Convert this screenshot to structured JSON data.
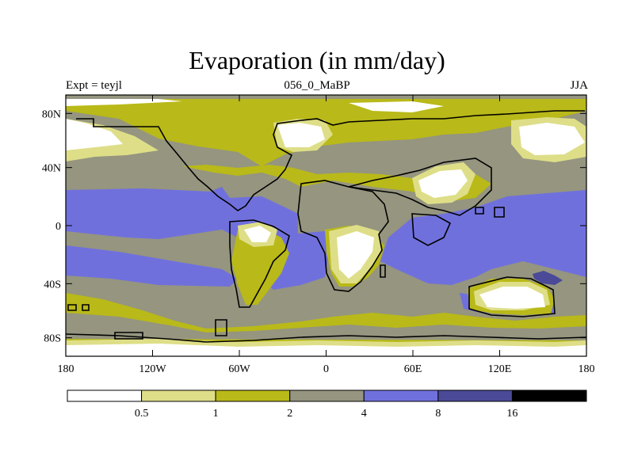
{
  "title": "Evaporation (in mm/day)",
  "subtitle_left": "Expt = teyjl",
  "subtitle_center": "056_0_MaBP",
  "subtitle_right": "JJA",
  "axes": {
    "lat_ticks": [
      {
        "value": 80,
        "label": "80N"
      },
      {
        "value": 40,
        "label": "40N"
      },
      {
        "value": 0,
        "label": "0"
      },
      {
        "value": -40,
        "label": "40S"
      },
      {
        "value": -80,
        "label": "80S"
      }
    ],
    "lon_ticks": [
      {
        "value": -180,
        "label": "180"
      },
      {
        "value": -120,
        "label": "120W"
      },
      {
        "value": -60,
        "label": "60W"
      },
      {
        "value": 0,
        "label": "0"
      },
      {
        "value": 60,
        "label": "60E"
      },
      {
        "value": 120,
        "label": "120E"
      },
      {
        "value": 180,
        "label": "180"
      }
    ]
  },
  "colorbar": {
    "colors": [
      "#ffffff",
      "#dede88",
      "#b9b919",
      "#959580",
      "#7070dd",
      "#4a4a98",
      "#000000"
    ],
    "labels": [
      "0.5",
      "1",
      "2",
      "4",
      "8",
      "16"
    ]
  },
  "colors": {
    "white": "#ffffff",
    "pale_yellow": "#dede88",
    "olive": "#b9b919",
    "gray": "#959580",
    "blue": "#7070dd",
    "dark_blue": "#4a4a98"
  }
}
